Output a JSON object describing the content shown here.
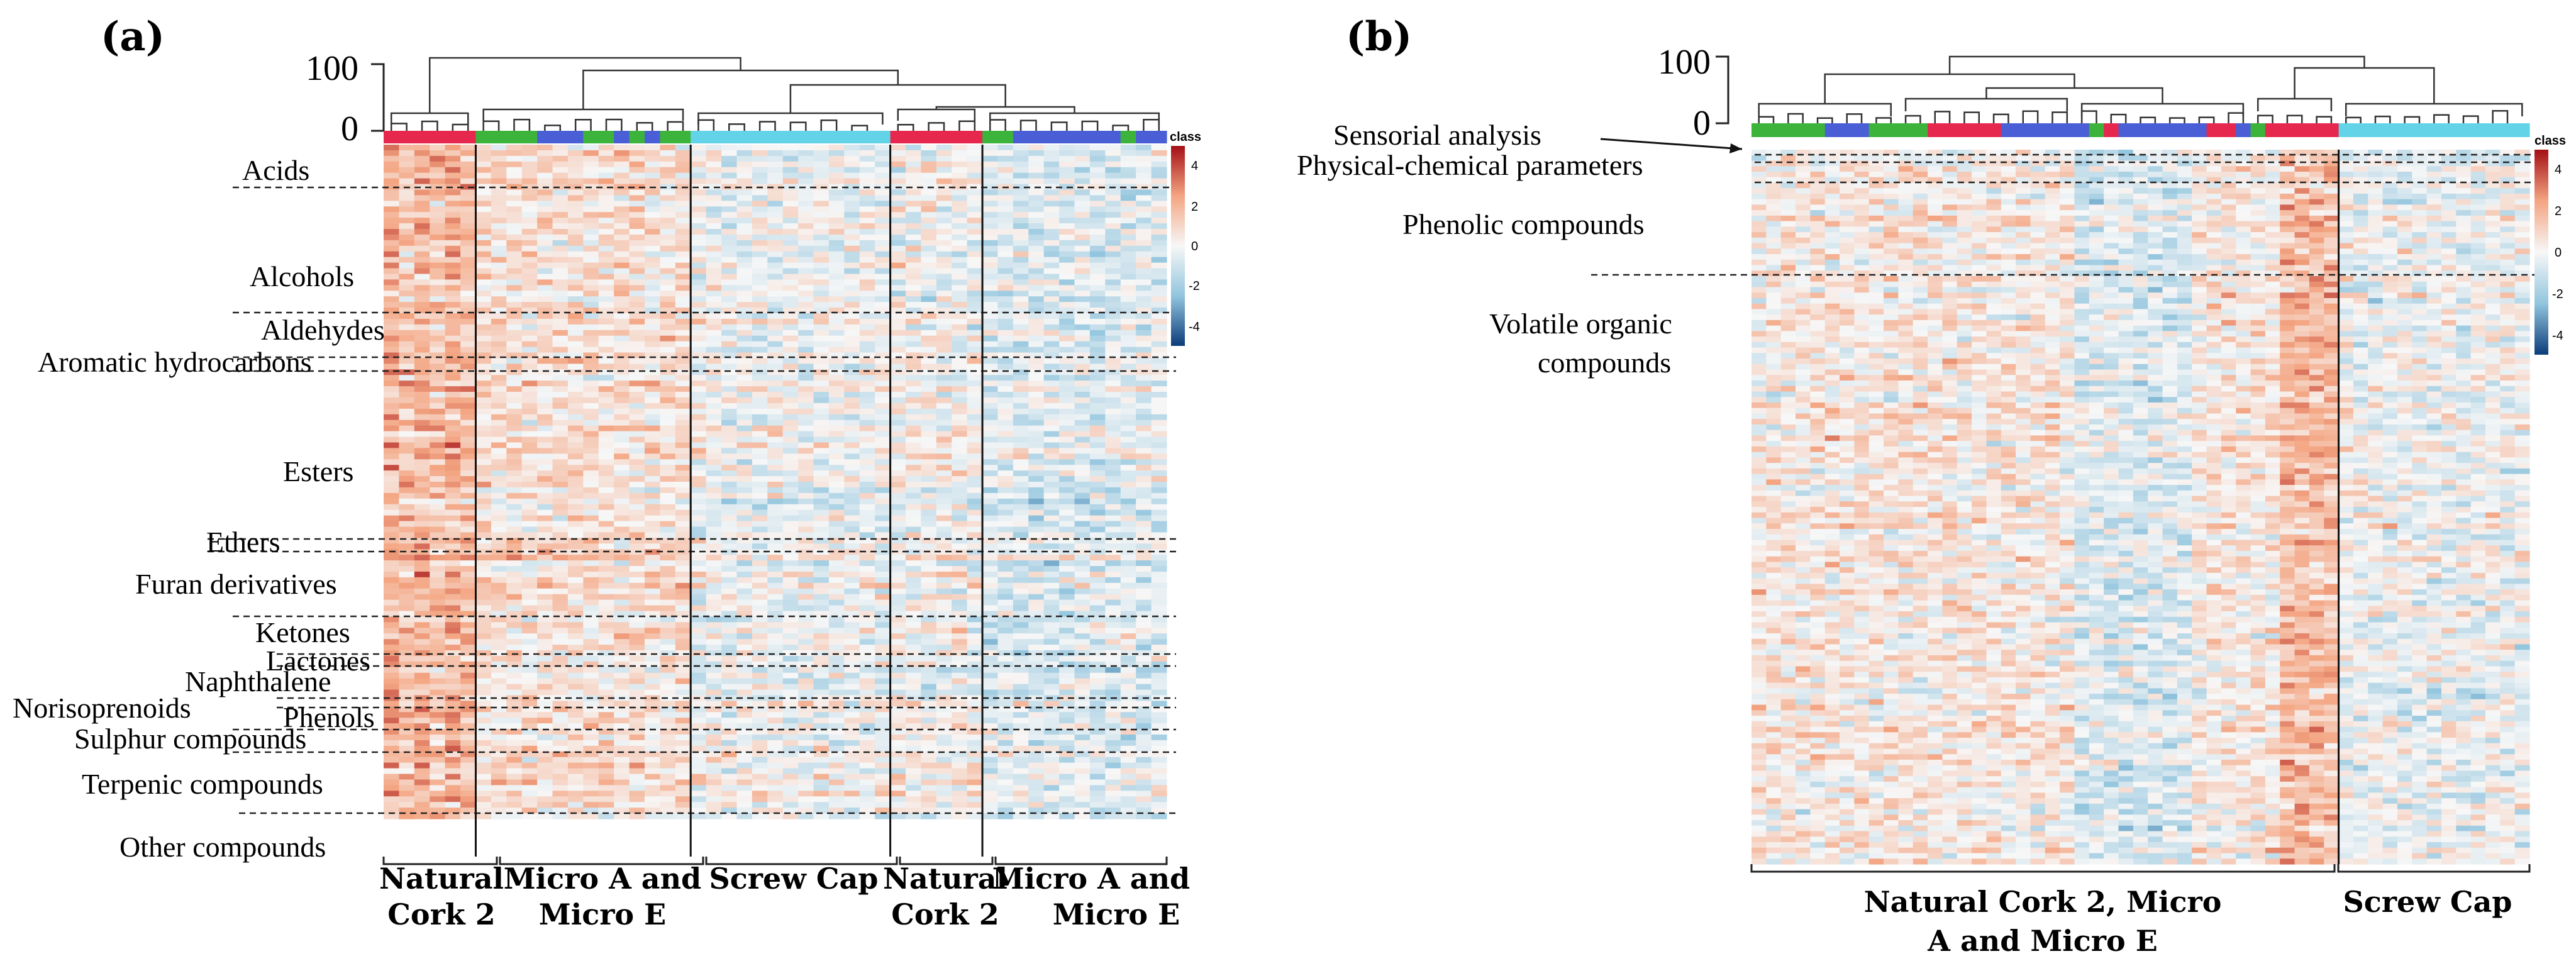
{
  "colors": {
    "high": "#a50f15",
    "mid_high": "#f4a582",
    "neutral": "#f7f7f7",
    "mid_low": "#92c5de",
    "low": "#0c3c7a",
    "class_natural_cork": "#e6284e",
    "class_micro_a": "#3cb43c",
    "class_micro_e": "#4a5fd6",
    "class_screw_cap": "#63d4e8"
  },
  "chart_data": [
    {
      "type": "heatmap",
      "panel_label": "(a)",
      "dendrogram_axis": {
        "ticks": [
          "100",
          "0"
        ],
        "range": [
          0,
          100
        ]
      },
      "legend": {
        "title": "class",
        "ticks": [
          "4",
          "2",
          "0",
          "-2",
          "-4"
        ],
        "range": [
          -4,
          4
        ]
      },
      "row_groups": [
        "Acids",
        "Alcohols",
        "Aldehydes",
        "Aromatic hydrocarbons",
        "Esters",
        "Ethers",
        "Furan derivatives",
        "Ketones",
        "Lactones",
        "Naphthalene",
        "Norisoprenoids",
        "Phenols",
        "Sulphur compounds",
        "Terpenic compounds",
        "Other compounds"
      ],
      "column_groups": [
        {
          "label_lines": [
            "Natural",
            "Cork 2"
          ],
          "class": "Natural Cork 2",
          "n": 6
        },
        {
          "label_lines": [
            "Micro A and",
            "Micro E"
          ],
          "class": "Micro A / Micro E",
          "n": 14
        },
        {
          "label_lines": [
            "Screw Cap"
          ],
          "class": "Screw Cap",
          "n": 13
        },
        {
          "label_lines": [
            "Natural",
            "Cork 2"
          ],
          "class": "Natural Cork 2",
          "n": 6
        },
        {
          "label_lines": [
            "Micro A and",
            "Micro E"
          ],
          "class": "Micro A / Micro E",
          "n": 12
        }
      ]
    },
    {
      "type": "heatmap",
      "panel_label": "(b)",
      "dendrogram_axis": {
        "ticks": [
          "100",
          "0"
        ],
        "range": [
          0,
          100
        ]
      },
      "legend": {
        "title": "class",
        "ticks": [
          "4",
          "2",
          "0",
          "-2",
          "-4"
        ],
        "range": [
          -4,
          4
        ]
      },
      "row_groups": [
        "Sensorial analysis",
        "Physical-chemical parameters",
        "Phenolic compounds",
        "Volatile organic compounds"
      ],
      "column_groups": [
        {
          "label_lines": [
            "Natural Cork 2, Micro",
            "A and Micro E"
          ],
          "class": "Natural Cork 2, Micro A and Micro E",
          "n": 40
        },
        {
          "label_lines": [
            "Screw Cap"
          ],
          "class": "Screw Cap",
          "n": 13
        }
      ]
    }
  ]
}
